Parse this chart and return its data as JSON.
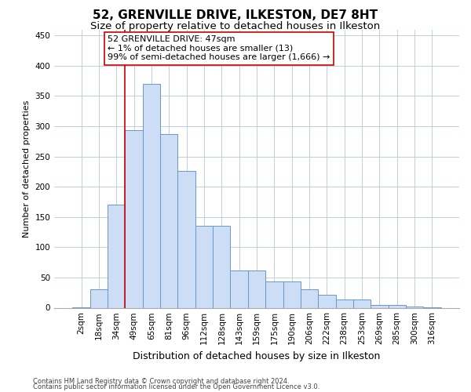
{
  "title": "52, GRENVILLE DRIVE, ILKESTON, DE7 8HT",
  "subtitle": "Size of property relative to detached houses in Ilkeston",
  "xlabel": "Distribution of detached houses by size in Ilkeston",
  "ylabel": "Number of detached properties",
  "categories": [
    "2sqm",
    "18sqm",
    "34sqm",
    "49sqm",
    "65sqm",
    "81sqm",
    "96sqm",
    "112sqm",
    "128sqm",
    "143sqm",
    "159sqm",
    "175sqm",
    "190sqm",
    "206sqm",
    "222sqm",
    "238sqm",
    "253sqm",
    "269sqm",
    "285sqm",
    "300sqm",
    "316sqm"
  ],
  "values": [
    1,
    30,
    170,
    293,
    370,
    287,
    226,
    135,
    135,
    62,
    62,
    44,
    44,
    30,
    22,
    14,
    14,
    5,
    5,
    2,
    1
  ],
  "bar_color": "#ccddf5",
  "bar_edge_color": "#6699cc",
  "vline_index": 3,
  "vline_color": "#cc0000",
  "annotation_text": "52 GRENVILLE DRIVE: 47sqm\n← 1% of detached houses are smaller (13)\n99% of semi-detached houses are larger (1,666) →",
  "annotation_box_color": "#ffffff",
  "annotation_box_edge": "#cc0000",
  "footer1": "Contains HM Land Registry data © Crown copyright and database right 2024.",
  "footer2": "Contains public sector information licensed under the Open Government Licence v3.0.",
  "bg_color": "#ffffff",
  "grid_color": "#b8c8de",
  "title_fontsize": 11,
  "subtitle_fontsize": 9.5,
  "xlabel_fontsize": 9,
  "ylabel_fontsize": 8,
  "annot_fontsize": 8,
  "tick_fontsize": 7.5,
  "footer_fontsize": 6,
  "ylim": [
    0,
    460
  ]
}
